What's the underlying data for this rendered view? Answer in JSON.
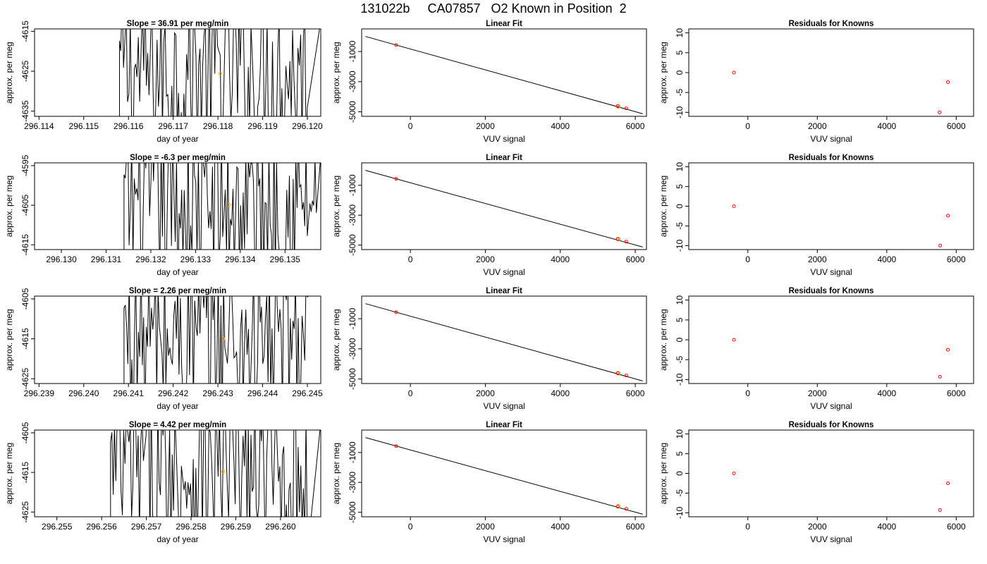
{
  "page_title": "131022b     CA07857   O2 Known in Position  2",
  "colors": {
    "trace": "#000000",
    "known_point": "#ffa500",
    "fit_point": "#ff0000",
    "frame": "#000000"
  },
  "chart_data": [
    {
      "type": "line",
      "panel": "trace-1",
      "title": "Slope =  36.91  per meg/min",
      "xlabel": "day of year",
      "ylabel": "approx. per meg",
      "xlim": [
        296.1139,
        296.1203
      ],
      "ylim": [
        -4636.3,
        -4614.4
      ],
      "x_ticks": [
        "296.114",
        "296.115",
        "296.116",
        "296.117",
        "296.118",
        "296.119",
        "296.120"
      ],
      "x_tick_values": [
        296.114,
        296.115,
        296.116,
        296.117,
        296.118,
        296.119,
        296.12
      ],
      "y_ticks": [
        "-4615",
        "-4625",
        "-4635"
      ],
      "y_tick_values": [
        -4615,
        -4625,
        -4635
      ],
      "trace_range": [
        296.1158,
        296.12
      ],
      "trace_points": 140,
      "marker": {
        "x": 296.11805,
        "y": -4625.6
      }
    },
    {
      "type": "line",
      "panel": "trace-2",
      "title": "Slope =  -6.3  per meg/min",
      "xlabel": "day of year",
      "ylabel": "approx. per meg",
      "xlim": [
        296.1294,
        296.1358
      ],
      "ylim": [
        -4616.2,
        -4594.3
      ],
      "x_ticks": [
        "296.130",
        "296.131",
        "296.132",
        "296.133",
        "296.134",
        "296.135"
      ],
      "x_tick_values": [
        296.13,
        296.131,
        296.132,
        296.133,
        296.134,
        296.135
      ],
      "y_ticks": [
        "-4595",
        "-4605",
        "-4615"
      ],
      "y_tick_values": [
        -4595,
        -4605,
        -4615
      ],
      "trace_range": [
        296.1314,
        296.1357
      ],
      "trace_points": 150,
      "marker": {
        "x": 296.13375,
        "y": -4604.9
      }
    },
    {
      "type": "line",
      "panel": "trace-3",
      "title": "Slope =  2.26  per meg/min",
      "xlabel": "day of year",
      "ylabel": "approx. per meg",
      "xlim": [
        296.2389,
        296.2453
      ],
      "ylim": [
        -4626.2,
        -4604.3
      ],
      "x_ticks": [
        "296.239",
        "296.240",
        "296.241",
        "296.242",
        "296.243",
        "296.244",
        "296.245"
      ],
      "x_tick_values": [
        296.239,
        296.24,
        296.241,
        296.242,
        296.243,
        296.244,
        296.245
      ],
      "y_ticks": [
        "-4605",
        "-4615",
        "-4625"
      ],
      "y_tick_values": [
        -4605,
        -4615,
        -4625
      ],
      "trace_range": [
        296.2409,
        296.245
      ],
      "trace_points": 140,
      "marker": {
        "x": 296.24312,
        "y": -4615.0
      }
    },
    {
      "type": "line",
      "panel": "trace-4",
      "title": "Slope =  4.42  per meg/min",
      "xlabel": "day of year",
      "ylabel": "approx. per meg",
      "xlim": [
        296.2545,
        296.2609
      ],
      "ylim": [
        -4626.2,
        -4604.3
      ],
      "x_ticks": [
        "296.255",
        "296.256",
        "296.257",
        "296.258",
        "296.259",
        "296.260"
      ],
      "x_tick_values": [
        296.255,
        296.256,
        296.257,
        296.258,
        296.259,
        296.26
      ],
      "y_ticks": [
        "-4605",
        "-4615",
        "-4625"
      ],
      "y_tick_values": [
        -4605,
        -4615,
        -4625
      ],
      "trace_range": [
        296.2562,
        296.2606
      ],
      "trace_points": 150,
      "marker": {
        "x": 296.25872,
        "y": -4614.8
      }
    },
    {
      "type": "scatter",
      "panel": "fit-1",
      "title": "Linear Fit",
      "xlabel": "VUV signal",
      "ylabel": "approx. per meg",
      "xlim": [
        -1300,
        6300
      ],
      "ylim": [
        -5300,
        500
      ],
      "x_ticks": [
        "0",
        "2000",
        "4000",
        "6000"
      ],
      "x_tick_values": [
        0,
        2000,
        4000,
        6000
      ],
      "y_ticks": [
        "-1000",
        "-3000",
        "-5000"
      ],
      "y_tick_values": [
        -1000,
        -3000,
        -5000
      ],
      "fit_line": [
        [
          -1200,
          0
        ],
        [
          6200,
          -5130
        ]
      ],
      "points": [
        [
          -380,
          -570
        ],
        [
          5530,
          -4620
        ],
        [
          5760,
          -4770
        ]
      ],
      "highlight": [
        [
          5550,
          -4640
        ]
      ]
    },
    {
      "type": "scatter",
      "panel": "fit-2",
      "title": "Linear Fit",
      "xlabel": "VUV signal",
      "ylabel": "approx. per meg",
      "xlim": [
        -1300,
        6300
      ],
      "ylim": [
        -5300,
        500
      ],
      "x_ticks": [
        "0",
        "2000",
        "4000",
        "6000"
      ],
      "x_tick_values": [
        0,
        2000,
        4000,
        6000
      ],
      "y_ticks": [
        "-1000",
        "-3000",
        "-5000"
      ],
      "y_tick_values": [
        -1000,
        -3000,
        -5000
      ],
      "fit_line": [
        [
          -1200,
          0
        ],
        [
          6200,
          -5130
        ]
      ],
      "points": [
        [
          -380,
          -570
        ],
        [
          5530,
          -4600
        ],
        [
          5760,
          -4770
        ]
      ],
      "highlight": [
        [
          5550,
          -4600
        ]
      ]
    },
    {
      "type": "scatter",
      "panel": "fit-3",
      "title": "Linear Fit",
      "xlabel": "VUV signal",
      "ylabel": "approx. per meg",
      "xlim": [
        -1300,
        6300
      ],
      "ylim": [
        -5300,
        500
      ],
      "x_ticks": [
        "0",
        "2000",
        "4000",
        "6000"
      ],
      "x_tick_values": [
        0,
        2000,
        4000,
        6000
      ],
      "y_ticks": [
        "-1000",
        "-3000",
        "-5000"
      ],
      "y_tick_values": [
        -1000,
        -3000,
        -5000
      ],
      "fit_line": [
        [
          -1200,
          0
        ],
        [
          6200,
          -5130
        ]
      ],
      "points": [
        [
          -380,
          -570
        ],
        [
          5530,
          -4610
        ],
        [
          5760,
          -4770
        ]
      ],
      "highlight": [
        [
          5550,
          -4620
        ]
      ]
    },
    {
      "type": "scatter",
      "panel": "fit-4",
      "title": "Linear Fit",
      "xlabel": "VUV signal",
      "ylabel": "approx. per meg",
      "xlim": [
        -1300,
        6300
      ],
      "ylim": [
        -5300,
        500
      ],
      "x_ticks": [
        "0",
        "2000",
        "4000",
        "6000"
      ],
      "x_tick_values": [
        0,
        2000,
        4000,
        6000
      ],
      "y_ticks": [
        "-1000",
        "-3000",
        "-5000"
      ],
      "y_tick_values": [
        -1000,
        -3000,
        -5000
      ],
      "fit_line": [
        [
          -1200,
          0
        ],
        [
          6200,
          -5130
        ]
      ],
      "points": [
        [
          -380,
          -570
        ],
        [
          5530,
          -4610
        ],
        [
          5760,
          -4770
        ]
      ],
      "highlight": [
        [
          5550,
          -4610
        ]
      ]
    },
    {
      "type": "scatter",
      "panel": "resid-1",
      "title": "Residuals for Knowns",
      "xlabel": "VUV signal",
      "ylabel": "approx. per meg",
      "xlim": [
        -1700,
        6500
      ],
      "ylim": [
        -11,
        11
      ],
      "x_ticks": [
        "0",
        "2000",
        "4000",
        "6000"
      ],
      "x_tick_values": [
        0,
        2000,
        4000,
        6000
      ],
      "y_ticks": [
        "10",
        "5",
        "0",
        "-5",
        "-10"
      ],
      "y_tick_values": [
        10,
        5,
        0,
        -5,
        -10
      ],
      "points": [
        [
          -400,
          0
        ],
        [
          5520,
          -10
        ],
        [
          5760,
          -2.4
        ]
      ]
    },
    {
      "type": "scatter",
      "panel": "resid-2",
      "title": "Residuals for Knowns",
      "xlabel": "VUV signal",
      "ylabel": "approx. per meg",
      "xlim": [
        -1700,
        6500
      ],
      "ylim": [
        -11,
        11
      ],
      "x_ticks": [
        "0",
        "2000",
        "4000",
        "6000"
      ],
      "x_tick_values": [
        0,
        2000,
        4000,
        6000
      ],
      "y_ticks": [
        "10",
        "5",
        "0",
        "-5",
        "-10"
      ],
      "y_tick_values": [
        10,
        5,
        0,
        -5,
        -10
      ],
      "points": [
        [
          -400,
          0
        ],
        [
          5540,
          -10
        ],
        [
          5760,
          -2.4
        ]
      ]
    },
    {
      "type": "scatter",
      "panel": "resid-3",
      "title": "Residuals for Knowns",
      "xlabel": "VUV signal",
      "ylabel": "approx. per meg",
      "xlim": [
        -1700,
        6500
      ],
      "ylim": [
        -11,
        11
      ],
      "x_ticks": [
        "0",
        "2000",
        "4000",
        "6000"
      ],
      "x_tick_values": [
        0,
        2000,
        4000,
        6000
      ],
      "y_ticks": [
        "10",
        "5",
        "0",
        "-5",
        "-10"
      ],
      "y_tick_values": [
        10,
        5,
        0,
        -5,
        -10
      ],
      "points": [
        [
          -400,
          0
        ],
        [
          5530,
          -9.3
        ],
        [
          5760,
          -2.5
        ]
      ]
    },
    {
      "type": "scatter",
      "panel": "resid-4",
      "title": "Residuals for Knowns",
      "xlabel": "VUV signal",
      "ylabel": "approx. per meg",
      "xlim": [
        -1700,
        6500
      ],
      "ylim": [
        -11,
        11
      ],
      "x_ticks": [
        "0",
        "2000",
        "4000",
        "6000"
      ],
      "x_tick_values": [
        0,
        2000,
        4000,
        6000
      ],
      "y_ticks": [
        "10",
        "5",
        "0",
        "-5",
        "-10"
      ],
      "y_tick_values": [
        10,
        5,
        0,
        -5,
        -10
      ],
      "points": [
        [
          -400,
          0
        ],
        [
          5530,
          -9.3
        ],
        [
          5760,
          -2.5
        ]
      ]
    }
  ]
}
